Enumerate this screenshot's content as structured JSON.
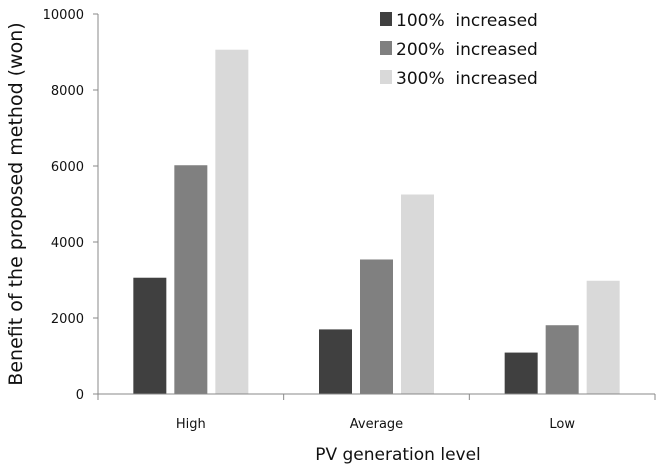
{
  "chart_data": {
    "type": "bar",
    "categories": [
      "High",
      "Average",
      "Low"
    ],
    "series": [
      {
        "name": "100%  increased",
        "color": "#404040",
        "values": [
          3060,
          1700,
          1090
        ]
      },
      {
        "name": "200%  increased",
        "color": "#808080",
        "values": [
          6020,
          3540,
          1810
        ]
      },
      {
        "name": "300%  increased",
        "color": "#d9d9d9",
        "values": [
          9060,
          5250,
          2980
        ]
      }
    ],
    "xlabel": "PV generation level",
    "ylabel": "Benefit of the proposed method (won)",
    "ylim": [
      0,
      10000
    ],
    "yticks": [
      0,
      2000,
      4000,
      6000,
      8000,
      10000
    ],
    "grid": false,
    "legend_position": "top-right"
  }
}
